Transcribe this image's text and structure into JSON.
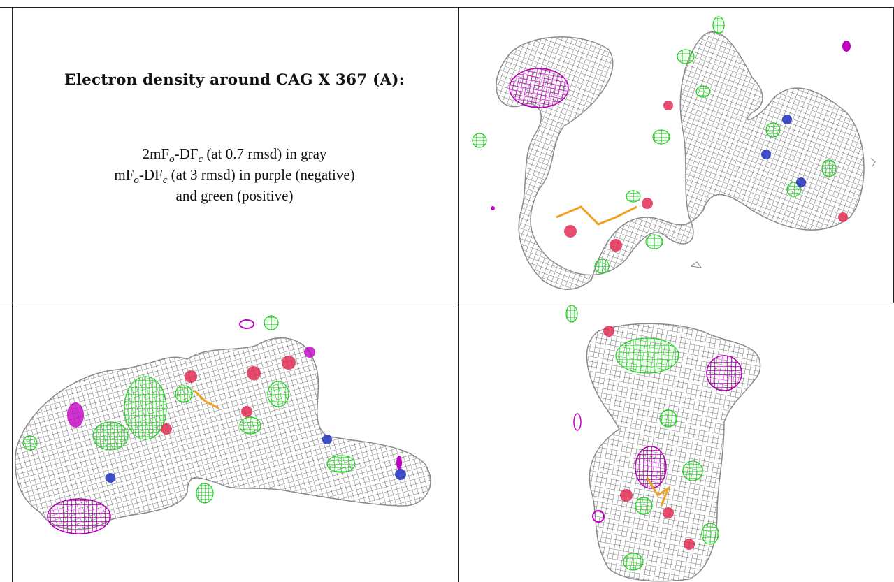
{
  "figure": {
    "title": "Electron density around CAG X 367 (A):",
    "legend": {
      "line1": {
        "pre": "2mF",
        "sub1": "o",
        "mid": "-DF",
        "sub2": "c",
        "post": " (at 0.7 rmsd) in gray"
      },
      "line2": {
        "pre": "mF",
        "sub1": "o",
        "mid": "-DF",
        "sub2": "c",
        "post": " (at 3 rmsd) in purple (negative)"
      },
      "line3": "and green (positive)"
    },
    "colors": {
      "mesh_gray": "#8c8c8c",
      "negative_purple": "#c000c0",
      "positive_green": "#22ee22",
      "oxygen_red": "#e0204a",
      "nitrogen_blue": "#2030c0",
      "phosphorus_orange": "#f0a020",
      "border": "#222222"
    },
    "panels": [
      {
        "name": "view-top-right",
        "content": "electron density mesh rendering"
      },
      {
        "name": "view-bottom-left",
        "content": "electron density mesh rendering"
      },
      {
        "name": "view-bottom-right",
        "content": "electron density mesh rendering"
      }
    ]
  }
}
